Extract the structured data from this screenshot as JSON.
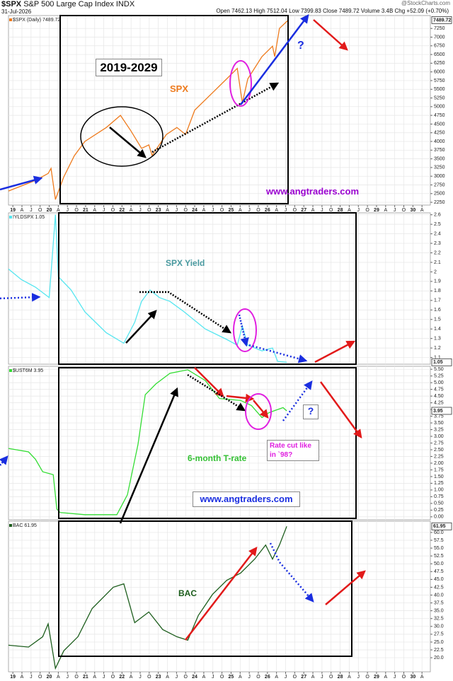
{
  "header": {
    "symbol": "$SPX",
    "name": "S&P 500 Large Cap Index INDX",
    "date": "31-Jul-2026",
    "stats": "Open 7462.13  High 7512.04  Low 7399.83  Close 7489.72  Volume 3.4B  Chg +52.09 (+0.70%)",
    "source": "@StockCharts.com"
  },
  "chart_data": [
    {
      "type": "line",
      "xlim": [
        2018.88,
        2030.48
      ],
      "ylim": [
        2170,
        7620
      ],
      "grid": true,
      "yticks": [
        2250,
        2500,
        2750,
        3000,
        3250,
        3500,
        3750,
        4000,
        4250,
        4500,
        4750,
        5000,
        5250,
        5500,
        5750,
        6000,
        6250,
        6500,
        6750,
        7000,
        7250
      ],
      "xticks": [
        {
          "value": 2019,
          "label": "19"
        },
        {
          "value": 2019.25,
          "label": "A"
        },
        {
          "value": 2019.5,
          "label": "J"
        },
        {
          "value": 2019.75,
          "label": "O"
        },
        {
          "value": 2020,
          "label": "20"
        },
        {
          "value": 2020.25,
          "label": "A"
        },
        {
          "value": 2020.5,
          "label": "J"
        },
        {
          "value": 2020.75,
          "label": "O"
        },
        {
          "value": 2021,
          "label": "21"
        },
        {
          "value": 2021.25,
          "label": "A"
        },
        {
          "value": 2021.5,
          "label": "J"
        },
        {
          "value": 2021.75,
          "label": "O"
        },
        {
          "value": 2022,
          "label": "22"
        },
        {
          "value": 2022.25,
          "label": "A"
        },
        {
          "value": 2022.5,
          "label": "J"
        },
        {
          "value": 2022.75,
          "label": "O"
        },
        {
          "value": 2023,
          "label": "23"
        },
        {
          "value": 2023.25,
          "label": "A"
        },
        {
          "value": 2023.5,
          "label": "J"
        },
        {
          "value": 2023.75,
          "label": "O"
        },
        {
          "value": 2024,
          "label": "24"
        },
        {
          "value": 2024.25,
          "label": "A"
        },
        {
          "value": 2024.5,
          "label": "J"
        },
        {
          "value": 2024.75,
          "label": "O"
        },
        {
          "value": 2025,
          "label": "25"
        },
        {
          "value": 2025.25,
          "label": "A"
        },
        {
          "value": 2025.5,
          "label": "J"
        },
        {
          "value": 2025.75,
          "label": "O"
        },
        {
          "value": 2026,
          "label": "26"
        },
        {
          "value": 2026.25,
          "label": "A"
        },
        {
          "value": 2026.5,
          "label": "J"
        },
        {
          "value": 2026.75,
          "label": "O"
        },
        {
          "value": 2027,
          "label": "27"
        },
        {
          "value": 2027.25,
          "label": "A"
        },
        {
          "value": 2027.5,
          "label": "J"
        },
        {
          "value": 2027.75,
          "label": "O"
        },
        {
          "value": 2028,
          "label": "28"
        },
        {
          "value": 2028.25,
          "label": "A"
        },
        {
          "value": 2028.5,
          "label": "J"
        },
        {
          "value": 2028.75,
          "label": "O"
        },
        {
          "value": 2029,
          "label": "29"
        },
        {
          "value": 2029.25,
          "label": "A"
        },
        {
          "value": 2029.5,
          "label": "J"
        },
        {
          "value": 2029.75,
          "label": "O"
        },
        {
          "value": 2030,
          "label": "30"
        },
        {
          "value": 2030.25,
          "label": "A"
        }
      ],
      "x": [
        2018.88,
        2019.62,
        2019.97,
        2020.05,
        2020.17,
        2020.4,
        2020.69,
        2020.98,
        2021.57,
        2021.96,
        2022.25,
        2022.54,
        2022.74,
        2022.83,
        2023.22,
        2023.51,
        2023.75,
        2024.0,
        2024.49,
        2024.88,
        2025.17,
        2025.31,
        2025.46,
        2025.85,
        2026.14,
        2026.2,
        2026.33,
        2026.53,
        2026.58
      ],
      "series": [
        {
          "name": "$SPX (Daily) 7489.72",
          "color": "#ee7a1c",
          "values": [
            2575,
            2880,
            3080,
            3225,
            2330,
            2980,
            3590,
            4000,
            4400,
            4750,
            4300,
            3800,
            3900,
            3600,
            4200,
            4400,
            4200,
            4900,
            5400,
            5800,
            6100,
            5110,
            5800,
            6440,
            6740,
            6440,
            7250,
            7450,
            7489.72
          ]
        }
      ],
      "last_value": 7489.72,
      "annotations": [
        "2019-2029",
        "SPX",
        "?",
        "www.angtraders.com"
      ]
    },
    {
      "type": "line",
      "xlim": [
        2018.88,
        2030.48
      ],
      "ylim": [
        1.03,
        2.62
      ],
      "grid": true,
      "yticks": [
        1.1,
        1.2,
        1.3,
        1.4,
        1.5,
        1.6,
        1.7,
        1.8,
        1.9,
        2,
        2.1,
        2.2,
        2.3,
        2.4,
        2.5,
        2.6
      ],
      "x": [
        2018.88,
        2019.23,
        2019.62,
        2020.0,
        2020.17,
        2020.25,
        2020.6,
        2020.98,
        2021.57,
        2022.05,
        2022.35,
        2022.54,
        2022.77,
        2023.03,
        2023.32,
        2023.71,
        2024.29,
        2024.88,
        2025.17,
        2025.31,
        2025.46,
        2025.85,
        2026.14,
        2026.28,
        2026.53
      ],
      "series": [
        {
          "name": "!YLDSPX 1.05",
          "color": "#55e6f0",
          "values": [
            2.03,
            1.92,
            1.84,
            1.73,
            2.6,
            1.95,
            1.81,
            1.58,
            1.36,
            1.25,
            1.47,
            1.69,
            1.81,
            1.73,
            1.69,
            1.58,
            1.4,
            1.29,
            1.23,
            1.43,
            1.23,
            1.17,
            1.2,
            1.06,
            1.05
          ]
        }
      ],
      "last_value": 1.05,
      "annotations": [
        "SPX Yield"
      ]
    },
    {
      "type": "line",
      "xlim": [
        2018.88,
        2030.48
      ],
      "ylim": [
        -0.11,
        5.61
      ],
      "grid": true,
      "yticks": [
        {
          "value": 0,
          "label": "0.00"
        },
        {
          "value": 0.25,
          "label": "0.25"
        },
        {
          "value": 0.5,
          "label": "0.50"
        },
        {
          "value": 0.75,
          "label": "0.75"
        },
        {
          "value": 1,
          "label": "1.00"
        },
        {
          "value": 1.25,
          "label": "1.25"
        },
        {
          "value": 1.5,
          "label": "1.50"
        },
        {
          "value": 1.75,
          "label": "1.75"
        },
        {
          "value": 2,
          "label": "2.00"
        },
        {
          "value": 2.25,
          "label": "2.25"
        },
        {
          "value": 2.5,
          "label": "2.50"
        },
        {
          "value": 2.75,
          "label": "2.75"
        },
        {
          "value": 3,
          "label": "3.00"
        },
        {
          "value": 3.25,
          "label": "3.25"
        },
        {
          "value": 3.5,
          "label": "3.50"
        },
        {
          "value": 3.75,
          "label": "3.75"
        },
        {
          "value": 4,
          "label": "4.00"
        },
        {
          "value": 4.25,
          "label": "4.25"
        },
        {
          "value": 4.5,
          "label": "4.50"
        },
        {
          "value": 4.75,
          "label": "4.75"
        },
        {
          "value": 5,
          "label": "5.00"
        },
        {
          "value": 5.25,
          "label": "5.25"
        },
        {
          "value": 5.5,
          "label": "5.50"
        }
      ],
      "x": [
        2018.88,
        2019.43,
        2019.62,
        2019.82,
        2020.11,
        2020.21,
        2020.3,
        2020.98,
        2021.86,
        2022.15,
        2022.44,
        2022.64,
        2022.93,
        2023.32,
        2023.81,
        2024.29,
        2024.68,
        2025.26,
        2025.56,
        2025.85,
        2026.04,
        2026.43,
        2026.53
      ],
      "series": [
        {
          "name": "$UST6M 3.95",
          "color": "#33dd33",
          "values": [
            2.55,
            2.42,
            2.15,
            1.68,
            1.57,
            0.29,
            0.16,
            0.08,
            0.08,
            0.82,
            2.69,
            4.55,
            4.95,
            5.35,
            5.48,
            5.08,
            4.41,
            4.34,
            4.15,
            3.7,
            3.88,
            4.07,
            3.95
          ]
        }
      ],
      "last_value": 3.95,
      "annotations": [
        "?",
        "Rate cut like in `98?",
        "6-month T-rate",
        "www.angtraders.com"
      ]
    },
    {
      "type": "line",
      "xlim": [
        2018.88,
        2030.48
      ],
      "ylim": [
        15.5,
        63.6
      ],
      "grid": true,
      "yticks": [
        {
          "value": 20,
          "label": "20.0"
        },
        {
          "value": 22.5,
          "label": "22.5"
        },
        {
          "value": 25,
          "label": "25.0"
        },
        {
          "value": 27.5,
          "label": "27.5"
        },
        {
          "value": 30,
          "label": "30.0"
        },
        {
          "value": 32.5,
          "label": "32.5"
        },
        {
          "value": 35,
          "label": "35.0"
        },
        {
          "value": 37.5,
          "label": "37.5"
        },
        {
          "value": 40,
          "label": "40.0"
        },
        {
          "value": 42.5,
          "label": "42.5"
        },
        {
          "value": 45,
          "label": "45.0"
        },
        {
          "value": 47.5,
          "label": "47.5"
        },
        {
          "value": 50,
          "label": "50.0"
        },
        {
          "value": 52.5,
          "label": "52.5"
        },
        {
          "value": 55,
          "label": "55.0"
        },
        {
          "value": 57.5,
          "label": "57.5"
        },
        {
          "value": 60,
          "label": "60.0"
        }
      ],
      "xticks": [
        {
          "value": 2019,
          "label": "19"
        },
        {
          "value": 2019.25,
          "label": "A"
        },
        {
          "value": 2019.5,
          "label": "J"
        },
        {
          "value": 2019.75,
          "label": "O"
        },
        {
          "value": 2020,
          "label": "20"
        },
        {
          "value": 2020.25,
          "label": "A"
        },
        {
          "value": 2020.5,
          "label": "J"
        },
        {
          "value": 2020.75,
          "label": "O"
        },
        {
          "value": 2021,
          "label": "21"
        },
        {
          "value": 2021.25,
          "label": "A"
        },
        {
          "value": 2021.5,
          "label": "J"
        },
        {
          "value": 2021.75,
          "label": "O"
        },
        {
          "value": 2022,
          "label": "22"
        },
        {
          "value": 2022.25,
          "label": "A"
        },
        {
          "value": 2022.5,
          "label": "J"
        },
        {
          "value": 2022.75,
          "label": "O"
        },
        {
          "value": 2023,
          "label": "23"
        },
        {
          "value": 2023.25,
          "label": "A"
        },
        {
          "value": 2023.5,
          "label": "J"
        },
        {
          "value": 2023.75,
          "label": "O"
        },
        {
          "value": 2024,
          "label": "24"
        },
        {
          "value": 2024.25,
          "label": "A"
        },
        {
          "value": 2024.5,
          "label": "J"
        },
        {
          "value": 2024.75,
          "label": "O"
        },
        {
          "value": 2025,
          "label": "25"
        },
        {
          "value": 2025.25,
          "label": "A"
        },
        {
          "value": 2025.5,
          "label": "J"
        },
        {
          "value": 2025.75,
          "label": "O"
        },
        {
          "value": 2026,
          "label": "26"
        },
        {
          "value": 2026.25,
          "label": "A"
        },
        {
          "value": 2026.5,
          "label": "J"
        },
        {
          "value": 2026.75,
          "label": "O"
        },
        {
          "value": 2027,
          "label": "27"
        },
        {
          "value": 2027.25,
          "label": "A"
        },
        {
          "value": 2027.5,
          "label": "J"
        },
        {
          "value": 2027.75,
          "label": "O"
        },
        {
          "value": 2028,
          "label": "28"
        },
        {
          "value": 2028.25,
          "label": "A"
        },
        {
          "value": 2028.5,
          "label": "J"
        },
        {
          "value": 2028.75,
          "label": "O"
        },
        {
          "value": 2029,
          "label": "29"
        },
        {
          "value": 2029.25,
          "label": "A"
        },
        {
          "value": 2029.5,
          "label": "J"
        },
        {
          "value": 2029.75,
          "label": "O"
        },
        {
          "value": 2030,
          "label": "30"
        },
        {
          "value": 2030.25,
          "label": "A"
        }
      ],
      "x": [
        2018.88,
        2019.43,
        2019.82,
        2019.97,
        2020.17,
        2020.4,
        2020.79,
        2021.18,
        2021.76,
        2022.05,
        2022.35,
        2022.74,
        2023.12,
        2023.51,
        2023.81,
        2024.1,
        2024.49,
        2024.88,
        2025.26,
        2025.65,
        2025.95,
        2026.14,
        2026.33,
        2026.53
      ],
      "series": [
        {
          "name": "BAC 61.95",
          "color": "#1d5e1d",
          "values": [
            24.0,
            23.4,
            26.7,
            30.8,
            16.6,
            22.2,
            26.7,
            35.7,
            42.5,
            43.6,
            31.2,
            34.6,
            29.0,
            26.7,
            25.6,
            33.5,
            40.2,
            44.7,
            47.0,
            51.5,
            56.0,
            51.5,
            56.0,
            61.95
          ]
        }
      ],
      "last_value": 61.95,
      "annotations": [
        "BAC"
      ]
    }
  ]
}
